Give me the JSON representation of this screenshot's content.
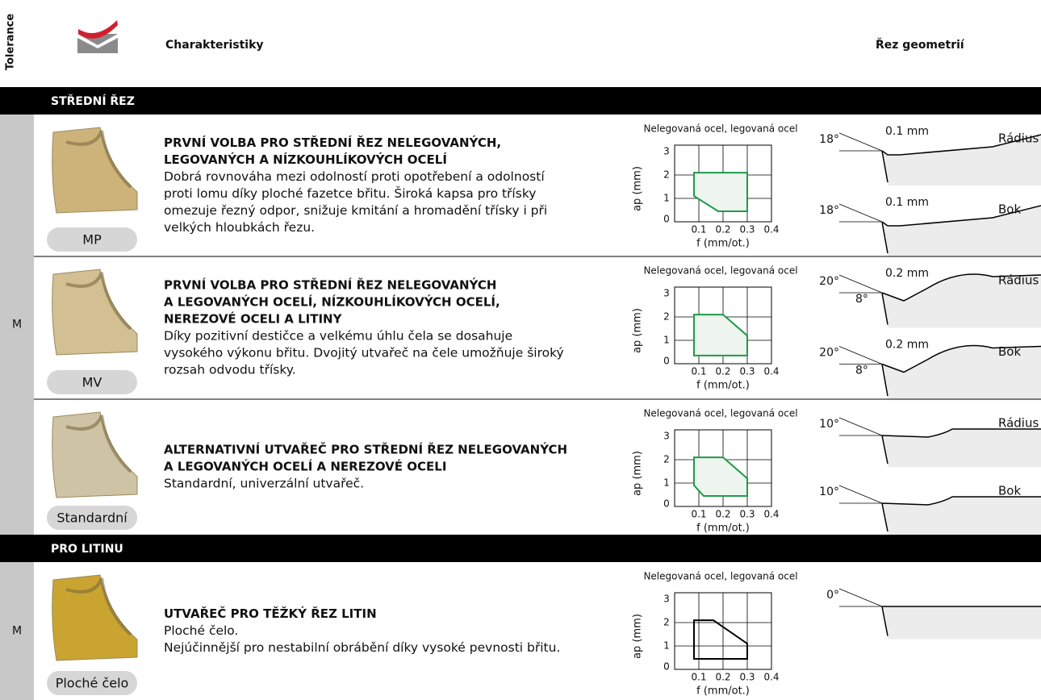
{
  "sidebar": {
    "tolerance": "Tolerance"
  },
  "header": {
    "characteristics": "Charakteristiky",
    "geometry": "Řez geometrií"
  },
  "sections": [
    {
      "title": "STŘEDNÍ ŘEZ",
      "tolerance": "M",
      "rows": [
        {
          "label": "MP",
          "heading": [
            "PRVNÍ VOLBA PRO STŘEDNÍ ŘEZ NELEGOVANÝCH,",
            "LEGOVANÝCH A NÍZKOUHLÍKOVÝCH OCELÍ"
          ],
          "text": [
            "Dobrá rovnováha mezi odolností proti opotřebení a odolností",
            "proti lomu díky ploché fazetce břitu. Široká kapsa pro třísky",
            "omezuje řezný odpor, snižuje kmitání a hromadění třísky i při",
            "velkých hloubkách řezu."
          ],
          "chart": {
            "title": "Nelegovaná ocel, legovaná ocel",
            "y_label": "ap (mm)",
            "x_label": "f (mm/ot.)",
            "yticks": [
              0,
              1,
              2,
              3
            ],
            "xticks": [
              0.1,
              0.2,
              0.3,
              0.4
            ]
          },
          "geometry": [
            {
              "name": "Rádius",
              "angle": "18°",
              "land": "0.1 mm"
            },
            {
              "name": "Bok",
              "angle": "18°",
              "land": "0.1 mm"
            }
          ]
        },
        {
          "label": "MV",
          "heading": [
            "PRVNÍ VOLBA PRO STŘEDNÍ ŘEZ NELEGOVANÝCH",
            "A LEGOVANÝCH OCELÍ, NÍZKOUHLÍKOVÝCH OCELÍ,",
            "NEREZOVÉ OCELI A LITINY"
          ],
          "text": [
            "Díky pozitivní destičce a velkému úhlu čela se dosahuje",
            "vysokého výkonu břitu. Dvojitý utvařeč na čele umožňuje široký",
            "rozsah odvodu třísky."
          ],
          "chart": {
            "title": "Nelegovaná ocel, legovaná ocel",
            "y_label": "ap (mm)",
            "x_label": "f (mm/ot.)",
            "yticks": [
              0,
              1,
              2,
              3
            ],
            "xticks": [
              0.1,
              0.2,
              0.3,
              0.4
            ]
          },
          "geometry": [
            {
              "name": "Rádius",
              "angle": "20°",
              "land": "0.2 mm",
              "rake": "8°"
            },
            {
              "name": "Bok",
              "angle": "20°",
              "land": "0.2 mm",
              "rake": "8°"
            }
          ]
        },
        {
          "label": "Standardní",
          "heading": [
            "ALTERNATIVNÍ UTVAŘEČ PRO STŘEDNÍ ŘEZ NELEGOVANÝCH",
            "A LEGOVANÝCH OCELÍ A NEREZOVÉ OCELI"
          ],
          "text": [
            "Standardní, univerzální utvařeč."
          ],
          "chart": {
            "title": "Nelegovaná ocel, legovaná ocel",
            "y_label": "ap (mm)",
            "x_label": "f (mm/ot.)",
            "yticks": [
              0,
              1,
              2,
              3
            ],
            "xticks": [
              0.1,
              0.2,
              0.3,
              0.4
            ]
          },
          "geometry": [
            {
              "name": "Rádius",
              "angle": "10°"
            },
            {
              "name": "Bok",
              "angle": "10°"
            }
          ]
        }
      ]
    },
    {
      "title": "PRO LITINU",
      "tolerance": "M",
      "rows": [
        {
          "label": "Ploché čelo",
          "heading": [
            "UTVAŘEČ PRO TĚŽKÝ ŘEZ LITIN"
          ],
          "text": [
            "Ploché čelo.",
            "Nejúčinnější pro nestabilní obrábění díky vysoké pevnosti břitu."
          ],
          "chart": {
            "title": "Nelegovaná ocel, legovaná ocel",
            "y_label": "ap (mm)",
            "x_label": "f (mm/ot.)",
            "yticks": [
              0,
              1,
              2,
              3
            ],
            "xticks": [
              0.1,
              0.2,
              0.3,
              0.4
            ]
          },
          "geometry": [
            {
              "angle": "0°"
            }
          ]
        }
      ]
    }
  ]
}
